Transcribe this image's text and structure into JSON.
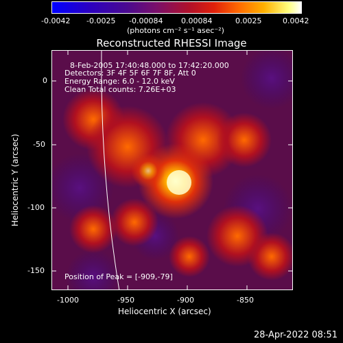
{
  "colorbar": {
    "ticks": [
      "-0.0042",
      "-0.0025",
      "-0.00084",
      "0.00084",
      "0.0025",
      "0.0042"
    ],
    "unit_label": "(photons cm⁻² s⁻¹ asec⁻²)"
  },
  "title": "Reconstructed RHESSI Image",
  "annotations": {
    "line1": "8-Feb-2005 17:40:48.000 to 17:42:20.000",
    "line2": "Detectors: 3F 4F 5F 6F 7F 8F, Att 0",
    "line3": "Energy Range: 6.0 - 12.0 keV",
    "line4": "Clean     Total counts: 7.26E+03",
    "peak": "Position of Peak = [-909,-79]"
  },
  "axes": {
    "xlabel": "Heliocentric X (arcsec)",
    "ylabel": "Heliocentric Y (arcsec)",
    "xticks": [
      "-1000",
      "-950",
      "-900",
      "-850"
    ],
    "yticks": [
      "0",
      "-50",
      "-100",
      "-150"
    ]
  },
  "footer": {
    "timestamp": "28-Apr-2022 08:51"
  }
}
